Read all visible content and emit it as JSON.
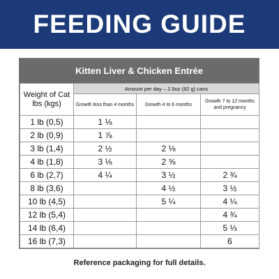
{
  "banner": {
    "title": "FEEDING GUIDE"
  },
  "guide": {
    "product_name": "Kitten Liver & Chicken Entrée",
    "weight_header": "Weight of Cat lbs (kgs)",
    "amount_header": "Amount per day – 2.9oz (82 g) cans",
    "columns": [
      "Growth less than 4 months",
      "Growth 4 to 6 months",
      "Growth 7 to 12 months and pregnancy"
    ],
    "rows": [
      {
        "weight": "1 lb (0,5)",
        "values": [
          "1 ⅛",
          "",
          ""
        ]
      },
      {
        "weight": "2 lb (0,9)",
        "values": [
          "1 ⅞",
          "",
          ""
        ]
      },
      {
        "weight": "3 lb (1,4)",
        "values": [
          "2 ½",
          "2 ⅛",
          ""
        ]
      },
      {
        "weight": "4 lb (1,8)",
        "values": [
          "3 ⅛",
          "2 ⅝",
          ""
        ]
      },
      {
        "weight": "6 lb (2,7)",
        "values": [
          "4 ¼",
          "3 ½",
          "2 ¾"
        ]
      },
      {
        "weight": "8 lb (3,6)",
        "values": [
          "",
          "4 ½",
          "3 ½"
        ]
      },
      {
        "weight": "10 lb (4,5)",
        "values": [
          "",
          "5 ¼",
          "4 ¼"
        ]
      },
      {
        "weight": "12 lb (5,4)",
        "values": [
          "",
          "",
          "4 ¾"
        ]
      },
      {
        "weight": "14 lb (6,4)",
        "values": [
          "",
          "",
          "5 ⅓"
        ]
      },
      {
        "weight": "16 lb (7,3)",
        "values": [
          "",
          "",
          "6"
        ]
      }
    ]
  },
  "footer": {
    "note": "Reference packaging for full details."
  },
  "colors": {
    "banner": "#1c3a78",
    "product_header": "#6b6b6b",
    "amount_header": "#d9d9d9"
  }
}
